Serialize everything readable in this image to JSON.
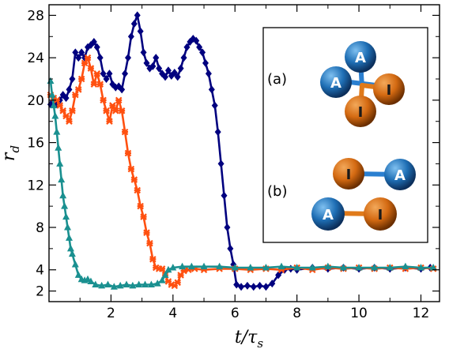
{
  "chart_data": {
    "type": "line",
    "xlabel": "t/τs",
    "ylabel": "rd",
    "xlim": [
      0,
      12.6
    ],
    "ylim": [
      1,
      29
    ],
    "x_ticks": [
      2,
      4,
      6,
      8,
      10,
      12
    ],
    "y_ticks": [
      2,
      4,
      8,
      12,
      16,
      20,
      24,
      28
    ],
    "grid": false,
    "series": [
      {
        "color": "#00007f",
        "marker": "diamond",
        "points": [
          [
            0.05,
            19.6
          ],
          [
            0.15,
            19.9
          ],
          [
            0.25,
            19.6
          ],
          [
            0.35,
            20.0
          ],
          [
            0.45,
            20.5
          ],
          [
            0.55,
            20.2
          ],
          [
            0.65,
            21.0
          ],
          [
            0.75,
            22.0
          ],
          [
            0.85,
            24.5
          ],
          [
            0.95,
            24.0
          ],
          [
            1.05,
            24.5
          ],
          [
            1.15,
            24.0
          ],
          [
            1.25,
            25.0
          ],
          [
            1.35,
            25.2
          ],
          [
            1.45,
            25.5
          ],
          [
            1.55,
            25.0
          ],
          [
            1.65,
            24.0
          ],
          [
            1.75,
            22.5
          ],
          [
            1.85,
            22.0
          ],
          [
            1.95,
            22.5
          ],
          [
            2.05,
            21.5
          ],
          [
            2.15,
            21.2
          ],
          [
            2.25,
            21.3
          ],
          [
            2.35,
            21.0
          ],
          [
            2.45,
            22.5
          ],
          [
            2.55,
            24.0
          ],
          [
            2.65,
            26.0
          ],
          [
            2.75,
            27.2
          ],
          [
            2.85,
            28.0
          ],
          [
            2.95,
            26.5
          ],
          [
            3.05,
            24.5
          ],
          [
            3.15,
            23.5
          ],
          [
            3.25,
            23.0
          ],
          [
            3.35,
            23.2
          ],
          [
            3.45,
            24.0
          ],
          [
            3.55,
            23.0
          ],
          [
            3.65,
            22.5
          ],
          [
            3.75,
            22.2
          ],
          [
            3.85,
            22.8
          ],
          [
            3.95,
            22.3
          ],
          [
            4.05,
            22.6
          ],
          [
            4.15,
            22.2
          ],
          [
            4.25,
            23.0
          ],
          [
            4.35,
            24.0
          ],
          [
            4.45,
            25.0
          ],
          [
            4.55,
            25.5
          ],
          [
            4.65,
            25.8
          ],
          [
            4.75,
            25.6
          ],
          [
            4.85,
            25.0
          ],
          [
            4.95,
            24.5
          ],
          [
            5.05,
            23.5
          ],
          [
            5.15,
            22.5
          ],
          [
            5.25,
            21.0
          ],
          [
            5.35,
            19.5
          ],
          [
            5.45,
            17.0
          ],
          [
            5.55,
            14.0
          ],
          [
            5.65,
            11.0
          ],
          [
            5.75,
            8.0
          ],
          [
            5.85,
            6.0
          ],
          [
            5.95,
            4.5
          ],
          [
            6.05,
            2.6
          ],
          [
            6.2,
            2.4
          ],
          [
            6.4,
            2.5
          ],
          [
            6.6,
            2.4
          ],
          [
            6.8,
            2.5
          ],
          [
            7.0,
            2.4
          ],
          [
            7.2,
            2.7
          ],
          [
            7.4,
            3.5
          ],
          [
            7.6,
            4.0
          ],
          [
            7.8,
            4.1
          ],
          [
            8.0,
            4.0
          ],
          [
            8.5,
            4.2
          ],
          [
            9.0,
            4.1
          ],
          [
            9.5,
            4.2
          ],
          [
            10.0,
            4.1
          ],
          [
            10.5,
            4.2
          ],
          [
            11.0,
            4.1
          ],
          [
            11.5,
            4.2
          ],
          [
            12.0,
            4.1
          ],
          [
            12.3,
            4.2
          ]
        ]
      },
      {
        "color": "#ff5010",
        "marker": "cross",
        "points": [
          [
            0.05,
            20.5
          ],
          [
            0.15,
            20.2
          ],
          [
            0.25,
            20.0
          ],
          [
            0.35,
            19.5
          ],
          [
            0.45,
            19.0
          ],
          [
            0.55,
            18.5
          ],
          [
            0.65,
            18.0
          ],
          [
            0.75,
            19.0
          ],
          [
            0.85,
            20.5
          ],
          [
            0.95,
            21.0
          ],
          [
            1.05,
            22.0
          ],
          [
            1.15,
            23.5
          ],
          [
            1.25,
            24.0
          ],
          [
            1.35,
            23.0
          ],
          [
            1.45,
            21.5
          ],
          [
            1.55,
            22.5
          ],
          [
            1.65,
            21.5
          ],
          [
            1.75,
            20.0
          ],
          [
            1.85,
            19.0
          ],
          [
            1.95,
            18.0
          ],
          [
            2.05,
            19.5
          ],
          [
            2.15,
            19.0
          ],
          [
            2.25,
            20.0
          ],
          [
            2.35,
            19.0
          ],
          [
            2.45,
            17.0
          ],
          [
            2.55,
            15.0
          ],
          [
            2.65,
            13.5
          ],
          [
            2.75,
            12.5
          ],
          [
            2.85,
            11.5
          ],
          [
            2.95,
            10.0
          ],
          [
            3.05,
            9.0
          ],
          [
            3.15,
            7.5
          ],
          [
            3.25,
            6.5
          ],
          [
            3.35,
            5.0
          ],
          [
            3.45,
            4.2
          ],
          [
            3.55,
            4.1
          ],
          [
            3.65,
            4.1
          ],
          [
            3.75,
            3.5
          ],
          [
            3.85,
            2.9
          ],
          [
            3.95,
            2.6
          ],
          [
            4.05,
            2.5
          ],
          [
            4.15,
            2.8
          ],
          [
            4.25,
            3.5
          ],
          [
            4.35,
            3.9
          ],
          [
            4.5,
            4.0
          ],
          [
            4.7,
            4.1
          ],
          [
            5.0,
            4.0
          ],
          [
            5.5,
            4.1
          ],
          [
            6.0,
            4.1
          ],
          [
            6.5,
            4.0
          ],
          [
            7.0,
            4.1
          ],
          [
            7.5,
            4.0
          ],
          [
            8.0,
            4.2
          ],
          [
            8.5,
            4.0
          ],
          [
            9.0,
            4.2
          ],
          [
            9.5,
            4.1
          ],
          [
            10.0,
            4.2
          ],
          [
            10.5,
            4.1
          ],
          [
            11.0,
            4.2
          ],
          [
            11.5,
            4.1
          ],
          [
            12.0,
            4.2
          ],
          [
            12.4,
            4.1
          ]
        ]
      },
      {
        "color": "#1a9090",
        "marker": "triangle",
        "points": [
          [
            0.05,
            21.8
          ],
          [
            0.1,
            20.5
          ],
          [
            0.15,
            19.5
          ],
          [
            0.2,
            18.5
          ],
          [
            0.25,
            17.0
          ],
          [
            0.3,
            15.5
          ],
          [
            0.35,
            14.0
          ],
          [
            0.4,
            12.5
          ],
          [
            0.45,
            11.0
          ],
          [
            0.5,
            10.0
          ],
          [
            0.55,
            9.0
          ],
          [
            0.6,
            8.0
          ],
          [
            0.65,
            7.0
          ],
          [
            0.7,
            6.0
          ],
          [
            0.75,
            5.5
          ],
          [
            0.85,
            4.5
          ],
          [
            0.95,
            3.5
          ],
          [
            1.05,
            3.1
          ],
          [
            1.15,
            3.0
          ],
          [
            1.25,
            3.1
          ],
          [
            1.35,
            2.9
          ],
          [
            1.5,
            2.6
          ],
          [
            1.7,
            2.5
          ],
          [
            1.9,
            2.6
          ],
          [
            2.1,
            2.4
          ],
          [
            2.3,
            2.5
          ],
          [
            2.5,
            2.6
          ],
          [
            2.7,
            2.5
          ],
          [
            2.9,
            2.6
          ],
          [
            3.1,
            2.6
          ],
          [
            3.3,
            2.6
          ],
          [
            3.5,
            2.7
          ],
          [
            3.65,
            3.0
          ],
          [
            3.75,
            3.5
          ],
          [
            3.85,
            4.0
          ],
          [
            4.0,
            4.2
          ],
          [
            4.3,
            4.3
          ],
          [
            4.6,
            4.3
          ],
          [
            5.0,
            4.3
          ],
          [
            5.5,
            4.3
          ],
          [
            6.0,
            4.2
          ],
          [
            6.5,
            4.2
          ],
          [
            7.0,
            4.2
          ],
          [
            7.5,
            4.3
          ],
          [
            8.0,
            4.2
          ],
          [
            8.5,
            4.2
          ],
          [
            9.0,
            4.3
          ],
          [
            9.5,
            4.2
          ],
          [
            10.0,
            4.2
          ],
          [
            10.5,
            4.2
          ],
          [
            11.0,
            4.2
          ],
          [
            11.5,
            4.3
          ],
          [
            12.0,
            4.2
          ],
          [
            12.4,
            4.2
          ]
        ]
      }
    ]
  },
  "inset": {
    "a_label": "(a)",
    "b_label": "(b)",
    "ball_a": "A",
    "ball_i": "I",
    "colors": {
      "A": "#1f6fb5",
      "I": "#d46a12"
    }
  }
}
